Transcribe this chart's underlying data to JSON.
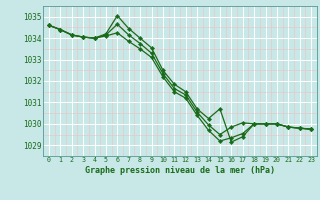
{
  "title": "Graphe pression niveau de la mer (hPa)",
  "bg_color": "#c8e8e8",
  "grid_color": "#ffffff",
  "line_color": "#1a6b1a",
  "xlim": [
    -0.5,
    23.5
  ],
  "ylim": [
    1028.5,
    1035.5
  ],
  "yticks": [
    1029,
    1030,
    1031,
    1032,
    1033,
    1034,
    1035
  ],
  "xticks": [
    0,
    1,
    2,
    3,
    4,
    5,
    6,
    7,
    8,
    9,
    10,
    11,
    12,
    13,
    14,
    15,
    16,
    17,
    18,
    19,
    20,
    21,
    22,
    23
  ],
  "series1": [
    1034.6,
    1034.4,
    1034.15,
    1034.05,
    1034.0,
    1034.2,
    1035.05,
    1034.45,
    1034.0,
    1033.55,
    1032.5,
    1031.85,
    1031.5,
    1030.7,
    1030.25,
    1030.7,
    1029.15,
    1029.4,
    1030.0,
    1030.0,
    1030.0,
    1029.85,
    1029.8,
    1029.75
  ],
  "series2": [
    1034.6,
    1034.4,
    1034.15,
    1034.05,
    1034.0,
    1034.1,
    1034.25,
    1033.85,
    1033.5,
    1033.1,
    1032.2,
    1031.5,
    1031.2,
    1030.4,
    1029.7,
    1029.2,
    1029.35,
    1029.55,
    1030.0,
    1030.0,
    1030.0,
    1029.85,
    1029.8,
    1029.75
  ],
  "series3": [
    1034.6,
    1034.4,
    1034.15,
    1034.05,
    1034.0,
    1034.15,
    1034.65,
    1034.15,
    1033.75,
    1033.3,
    1032.35,
    1031.65,
    1031.35,
    1030.55,
    1029.95,
    1029.5,
    1029.85,
    1030.05,
    1030.0,
    1030.0,
    1030.0,
    1029.85,
    1029.8,
    1029.75
  ]
}
